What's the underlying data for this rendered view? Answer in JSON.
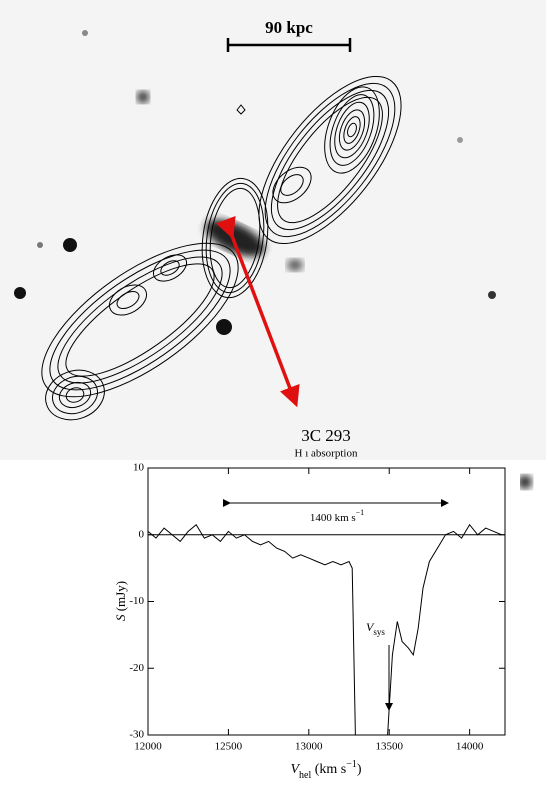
{
  "chart_data": {
    "type": "line",
    "title": "3C 293",
    "subtitle": "H ı absorption",
    "scale_bar_label": "90 kpc",
    "x_label": [
      "V",
      "hel",
      " (km s",
      "−1",
      ")"
    ],
    "y_label": [
      "S",
      " (mJy)"
    ],
    "span_label": [
      "1400 km s",
      "−1"
    ],
    "vsys_label": [
      "V",
      "sys"
    ],
    "x": [
      12000,
      12050,
      12100,
      12150,
      12200,
      12250,
      12300,
      12350,
      12400,
      12450,
      12500,
      12550,
      12600,
      12650,
      12700,
      12750,
      12800,
      12850,
      12900,
      12950,
      13000,
      13050,
      13100,
      13150,
      13200,
      13250,
      13270,
      13290,
      13400,
      13490,
      13520,
      13550,
      13580,
      13620,
      13650,
      13680,
      13710,
      13750,
      13800,
      13850,
      13900,
      13950,
      14000,
      14050,
      14100,
      14150,
      14200
    ],
    "series": [
      {
        "color": "#000000",
        "values": [
          0.5,
          -0.5,
          1,
          0,
          -1,
          0.5,
          1.5,
          -0.5,
          0,
          -1,
          0.5,
          -0.5,
          0,
          -1,
          -1.5,
          -1,
          -2,
          -2.5,
          -3.5,
          -3,
          -3.5,
          -4,
          -4.5,
          -4,
          -4.5,
          -4,
          -5,
          -30,
          null,
          -30,
          -18,
          -13,
          -16,
          -17,
          -18,
          -14,
          -8,
          -4,
          -2,
          0,
          0.5,
          -0.5,
          1.5,
          0,
          1,
          0.5,
          0
        ]
      }
    ],
    "xlim": [
      12000,
      14220
    ],
    "ylim": [
      -30,
      10
    ],
    "xticks": [
      12000,
      12500,
      13000,
      13500,
      14000
    ],
    "yticks": [
      -30,
      -20,
      -10,
      0,
      10
    ],
    "zero_line": true
  }
}
